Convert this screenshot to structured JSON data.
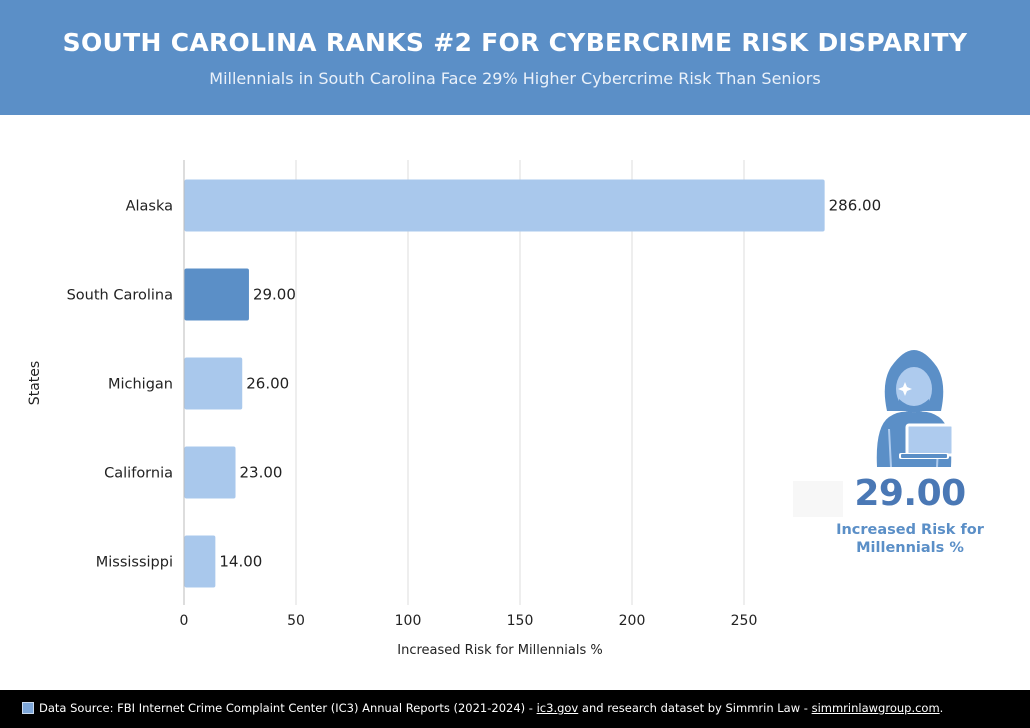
{
  "header": {
    "title": "SOUTH CAROLINA RANKS #2 FOR CYBERCRIME RISK DISPARITY",
    "subtitle": "Millennials in South Carolina Face 29% Higher Cybercrime Risk Than Seniors"
  },
  "chart_data": {
    "type": "bar",
    "orientation": "horizontal",
    "categories": [
      "Alaska",
      "South Carolina",
      "Michigan",
      "California",
      "Mississippi"
    ],
    "values": [
      286.0,
      29.0,
      26.0,
      23.0,
      14.0
    ],
    "value_labels": [
      "286.00",
      "29.00",
      "26.00",
      "23.00",
      "14.00"
    ],
    "highlight": "South Carolina",
    "xlabel": "Increased Risk for Millennials %",
    "ylabel": "States",
    "xticks": [
      0,
      50,
      100,
      150,
      200,
      250
    ],
    "xlim": [
      0,
      300
    ],
    "grid": "vertical",
    "colors": {
      "bar": "#a9c8ec",
      "highlight": "#5b8fc7",
      "grid": "#dddddd"
    }
  },
  "highlight_panel": {
    "icon": "hacker-icon",
    "value": "29.00",
    "label_line1": "Increased Risk for",
    "label_line2": "Millennials %"
  },
  "footer": {
    "icon": "chart-icon",
    "prefix": "Data Source: FBI Internet Crime Complaint Center (IC3) Annual Reports (2021-2024) - ",
    "link1": "ic3.gov",
    "middle": " and research dataset by Simmrin Law - ",
    "link2": "simmrinlawgroup.com",
    "suffix": "."
  }
}
